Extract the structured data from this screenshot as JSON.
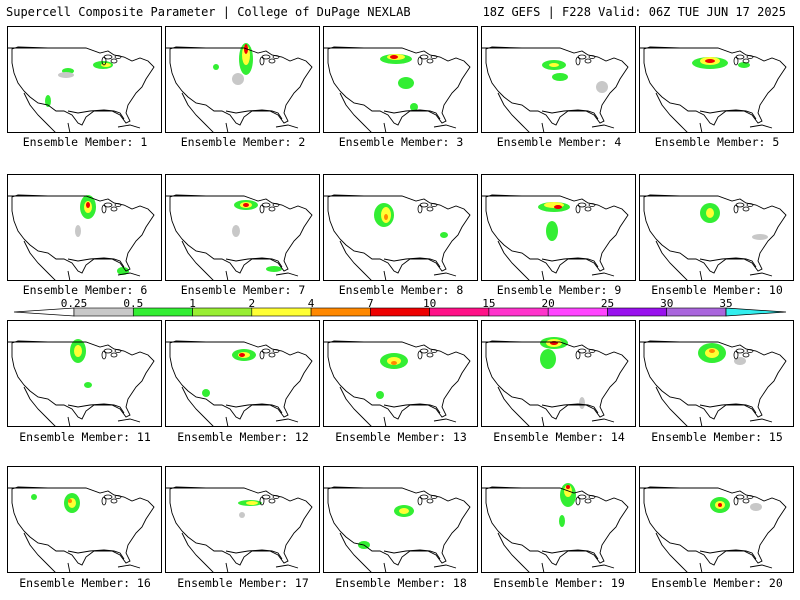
{
  "header": {
    "left": "Supercell Composite Parameter | College of DuPage NEXLAB",
    "right": "18Z GEFS | F228 Valid: 06Z TUE JUN 17 2025"
  },
  "member_label_prefix": "Ensemble Member: ",
  "members": [
    "1",
    "2",
    "3",
    "4",
    "5",
    "6",
    "7",
    "8",
    "9",
    "10",
    "11",
    "12",
    "13",
    "14",
    "15",
    "16",
    "17",
    "18",
    "19",
    "20"
  ],
  "colorbar": {
    "ticks": [
      "0.25",
      "0.5",
      "1",
      "2",
      "4",
      "7",
      "10",
      "15",
      "20",
      "25",
      "30",
      "35"
    ],
    "colors": [
      "#c8c8c8",
      "#33ee33",
      "#99ee33",
      "#ffff33",
      "#ff8800",
      "#ee0000",
      "#ff1188",
      "#ff33cc",
      "#ff44ff",
      "#9911ee",
      "#aa66dd",
      "#33eeee"
    ]
  },
  "field_colors": {
    "low": "#c8c8c8",
    "green": "#33ee33",
    "lightgreen": "#99ee33",
    "yellow": "#ffff33",
    "orange": "#ff8800",
    "red": "#ee0000",
    "magenta": "#ff1188"
  }
}
